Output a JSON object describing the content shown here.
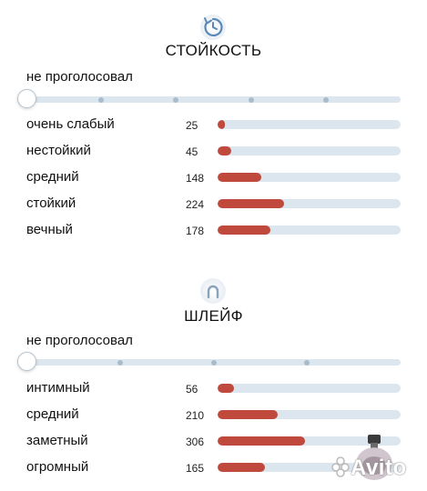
{
  "longevity": {
    "title": "СТОЙКОСТЬ",
    "icon": "clock-refresh-icon",
    "vote_label": "не проголосовал",
    "slider_value": 0,
    "slider_steps": 5,
    "rows": [
      {
        "label": "очень слабый",
        "count": "25",
        "value": 25
      },
      {
        "label": "нестойкий",
        "count": "45",
        "value": 45
      },
      {
        "label": "средний",
        "count": "148",
        "value": 148
      },
      {
        "label": "стойкий",
        "count": "224",
        "value": 224
      },
      {
        "label": "вечный",
        "count": "178",
        "value": 178
      }
    ]
  },
  "sillage": {
    "title": "ШЛЕЙФ",
    "icon": "sillage-arch-icon",
    "vote_label": "не проголосовал",
    "slider_value": 0,
    "slider_steps": 4,
    "rows": [
      {
        "label": "интимный",
        "count": "56",
        "value": 56
      },
      {
        "label": "средний",
        "count": "210",
        "value": 210
      },
      {
        "label": "заметный",
        "count": "306",
        "value": 306
      },
      {
        "label": "огромный",
        "count": "165",
        "value": 165
      }
    ]
  },
  "watermark": {
    "text": "Avito",
    "icon": "perfume-bottle-icon"
  },
  "colors": {
    "bar_fill": "#c0493d",
    "track": "#dce6ee",
    "accent_icon": "#5a88b6"
  }
}
